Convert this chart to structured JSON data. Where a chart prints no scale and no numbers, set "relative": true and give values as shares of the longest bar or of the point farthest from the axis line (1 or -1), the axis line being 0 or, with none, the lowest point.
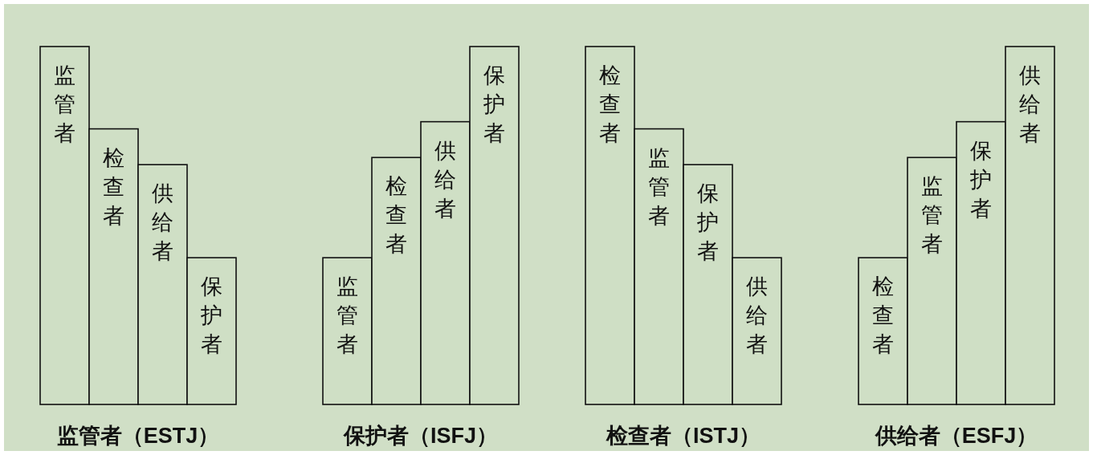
{
  "chart_data": [
    {
      "type": "bar",
      "relative": true,
      "color": "#cfdfc5",
      "title": "监管者（ESTJ）",
      "categories": [
        "监管者",
        "检查者",
        "供给者",
        "保护者"
      ],
      "values": [
        1,
        0.77,
        0.67,
        0.41
      ]
    },
    {
      "type": "bar",
      "relative": true,
      "color": "#cfdfc5",
      "title": "保护者（ISFJ）",
      "categories": [
        "监管者",
        "检查者",
        "供给者",
        "保护者"
      ],
      "values": [
        0.41,
        0.69,
        0.79,
        1
      ]
    },
    {
      "type": "bar",
      "relative": true,
      "color": "#cfdfc5",
      "title": "检查者（ISTJ）",
      "categories": [
        "检查者",
        "监管者",
        "保护者",
        "供给者"
      ],
      "values": [
        1,
        0.77,
        0.67,
        0.41
      ]
    },
    {
      "type": "bar",
      "relative": true,
      "color": "#cfdfc5",
      "title": "供给者（ESFJ）",
      "categories": [
        "检查者",
        "监管者",
        "保护者",
        "供给者"
      ],
      "values": [
        0.41,
        0.69,
        0.79,
        1
      ]
    }
  ]
}
